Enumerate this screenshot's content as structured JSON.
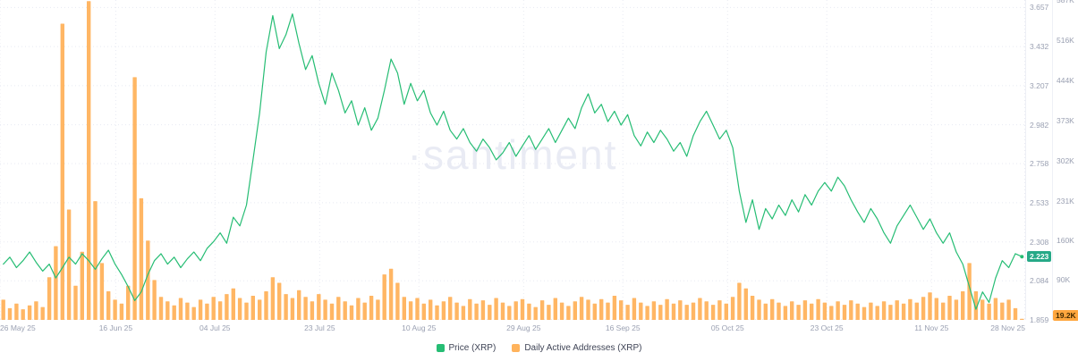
{
  "watermark": "·santiment",
  "legend": [
    {
      "label": "Price (XRP)",
      "color": "#26bd74"
    },
    {
      "label": "Daily Active Addresses (XRP)",
      "color": "#ffb35c"
    }
  ],
  "badges": {
    "price": {
      "label": "2.223",
      "value": 2.223,
      "bg": "#26a987",
      "fg": "#ffffff"
    },
    "addresses": {
      "label": "19.2K",
      "value": 19.2,
      "bg": "#ffa63e",
      "fg": "#442b00"
    }
  },
  "chart_data": {
    "type": "line+bar",
    "title": "",
    "x_axis": {
      "total_days": 186,
      "ticks": [
        {
          "label": "26 May 25",
          "day": 0
        },
        {
          "label": "16 Jun 25",
          "day": 21
        },
        {
          "label": "04 Jul 25",
          "day": 39
        },
        {
          "label": "23 Jul 25",
          "day": 58
        },
        {
          "label": "10 Aug 25",
          "day": 76
        },
        {
          "label": "29 Aug 25",
          "day": 95
        },
        {
          "label": "16 Sep 25",
          "day": 113
        },
        {
          "label": "05 Oct 25",
          "day": 132
        },
        {
          "label": "23 Oct 25",
          "day": 150
        },
        {
          "label": "11 Nov 25",
          "day": 169
        },
        {
          "label": "28 Nov 25",
          "day": 186
        }
      ]
    },
    "price_axis": {
      "min": 1.859,
      "max": 3.7,
      "ticks": [
        3.657,
        3.432,
        3.207,
        2.982,
        2.758,
        2.533,
        2.308,
        2.084,
        1.859
      ]
    },
    "addresses_axis": {
      "min": 19.2,
      "max": 587,
      "ticks": [
        {
          "v": 587,
          "label": "587K"
        },
        {
          "v": 516,
          "label": "516K"
        },
        {
          "v": 444,
          "label": "444K"
        },
        {
          "v": 373,
          "label": "373K"
        },
        {
          "v": 302,
          "label": "302K"
        },
        {
          "v": 231,
          "label": "231K"
        },
        {
          "v": 160,
          "label": "160K"
        },
        {
          "v": 90,
          "label": "90K"
        }
      ]
    },
    "current": {
      "price": 2.223,
      "addresses": 19.2,
      "addresses_label": "19.2K"
    },
    "series": [
      {
        "name": "Price (XRP)",
        "type": "line",
        "axis": "price",
        "color": "#26bd74",
        "values": [
          2.18,
          2.22,
          2.16,
          2.2,
          2.25,
          2.19,
          2.14,
          2.18,
          2.1,
          2.16,
          2.22,
          2.18,
          2.24,
          2.2,
          2.15,
          2.21,
          2.26,
          2.18,
          2.12,
          2.05,
          1.97,
          2.02,
          2.12,
          2.2,
          2.24,
          2.18,
          2.22,
          2.16,
          2.21,
          2.25,
          2.2,
          2.27,
          2.31,
          2.36,
          2.3,
          2.45,
          2.4,
          2.52,
          2.78,
          3.05,
          3.4,
          3.61,
          3.42,
          3.5,
          3.62,
          3.45,
          3.3,
          3.38,
          3.22,
          3.1,
          3.28,
          3.18,
          3.05,
          3.12,
          2.98,
          3.08,
          2.95,
          3.02,
          3.18,
          3.36,
          3.28,
          3.1,
          3.22,
          3.12,
          3.18,
          3.05,
          2.98,
          3.06,
          2.95,
          2.9,
          2.96,
          2.88,
          2.83,
          2.9,
          2.85,
          2.78,
          2.82,
          2.88,
          2.8,
          2.86,
          2.92,
          2.84,
          2.9,
          2.96,
          2.88,
          2.95,
          3.02,
          2.96,
          3.08,
          3.16,
          3.05,
          3.1,
          3.0,
          3.06,
          2.98,
          3.04,
          2.92,
          2.86,
          2.94,
          2.88,
          2.95,
          2.9,
          2.83,
          2.88,
          2.8,
          2.92,
          3.0,
          3.06,
          2.98,
          2.9,
          2.95,
          2.85,
          2.6,
          2.42,
          2.55,
          2.38,
          2.5,
          2.44,
          2.52,
          2.46,
          2.55,
          2.48,
          2.58,
          2.52,
          2.6,
          2.65,
          2.6,
          2.68,
          2.63,
          2.55,
          2.48,
          2.42,
          2.5,
          2.44,
          2.36,
          2.3,
          2.4,
          2.46,
          2.52,
          2.45,
          2.38,
          2.44,
          2.36,
          2.3,
          2.36,
          2.25,
          2.18,
          2.05,
          1.92,
          2.02,
          1.96,
          2.1,
          2.2,
          2.16,
          2.24,
          2.223
        ]
      },
      {
        "name": "Daily Active Addresses (XRP)",
        "type": "bar",
        "axis": "addresses",
        "unit": "K",
        "color": "#ffb35c",
        "values": [
          55,
          40,
          48,
          38,
          45,
          52,
          42,
          95,
          150,
          545,
          215,
          80,
          140,
          585,
          230,
          120,
          70,
          55,
          48,
          80,
          450,
          235,
          160,
          90,
          60,
          52,
          45,
          58,
          50,
          42,
          55,
          48,
          60,
          52,
          65,
          75,
          58,
          50,
          62,
          55,
          70,
          95,
          85,
          65,
          58,
          72,
          60,
          52,
          65,
          55,
          48,
          60,
          52,
          45,
          58,
          50,
          62,
          55,
          100,
          110,
          85,
          60,
          52,
          58,
          48,
          55,
          45,
          52,
          60,
          50,
          44,
          56,
          48,
          54,
          46,
          58,
          50,
          44,
          52,
          56,
          48,
          42,
          54,
          46,
          58,
          50,
          44,
          52,
          60,
          55,
          48,
          56,
          50,
          62,
          54,
          46,
          58,
          50,
          44,
          52,
          46,
          56,
          48,
          54,
          46,
          50,
          58,
          52,
          46,
          54,
          48,
          60,
          85,
          75,
          62,
          55,
          48,
          56,
          50,
          44,
          52,
          46,
          54,
          48,
          56,
          50,
          44,
          52,
          46,
          54,
          48,
          42,
          50,
          44,
          52,
          46,
          54,
          48,
          56,
          50,
          60,
          68,
          58,
          50,
          62,
          55,
          70,
          120,
          70,
          55,
          48,
          58,
          50,
          55,
          40,
          19.2
        ]
      }
    ]
  }
}
